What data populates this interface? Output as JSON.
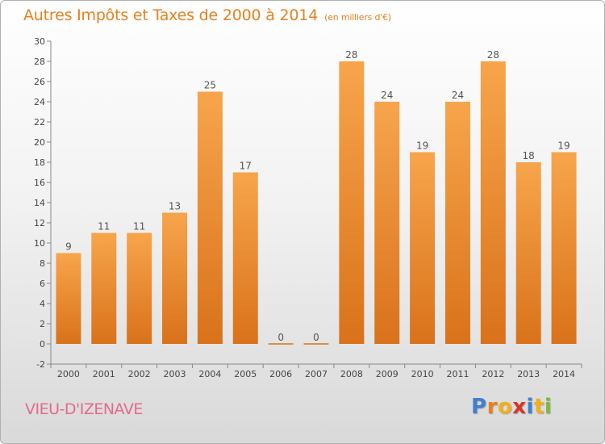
{
  "title": "Autres Impôts et Taxes de 2000 à 2014",
  "subtitle": "(en milliers d'€)",
  "commune": "VIEU-D'IZENAVE",
  "logo": {
    "letters": [
      {
        "char": "P",
        "color": "#3f7fd0"
      },
      {
        "char": "r",
        "color": "#e8801e"
      },
      {
        "char": "o",
        "color": "#f2b019"
      },
      {
        "char": "x",
        "color": "#d9342b"
      },
      {
        "char": "i",
        "color": "#3f7fd0"
      },
      {
        "char": "t",
        "color": "#f2b019"
      },
      {
        "char": "i",
        "color": "#7dbb3a"
      }
    ]
  },
  "colors": {
    "bar_light": "#f7a54c",
    "bar_dark": "#d9721a",
    "title": "#e8801e"
  },
  "chart_data": {
    "type": "bar",
    "categories": [
      "2000",
      "2001",
      "2002",
      "2003",
      "2004",
      "2005",
      "2006",
      "2007",
      "2008",
      "2009",
      "2010",
      "2011",
      "2012",
      "2013",
      "2014"
    ],
    "values": [
      9,
      11,
      11,
      13,
      25,
      17,
      0,
      0,
      28,
      24,
      19,
      24,
      28,
      18,
      19
    ],
    "data_labels": [
      "9",
      "11",
      "11",
      "13",
      "25",
      "17",
      "0",
      "0",
      "28",
      "24",
      "19",
      "24",
      "28",
      "18",
      "19"
    ],
    "y_ticks": [
      -2,
      0,
      2,
      4,
      6,
      8,
      10,
      12,
      14,
      16,
      18,
      20,
      22,
      24,
      26,
      28,
      30
    ],
    "ylim": [
      -2,
      30
    ],
    "grid": false,
    "xlabel": "",
    "ylabel": ""
  }
}
